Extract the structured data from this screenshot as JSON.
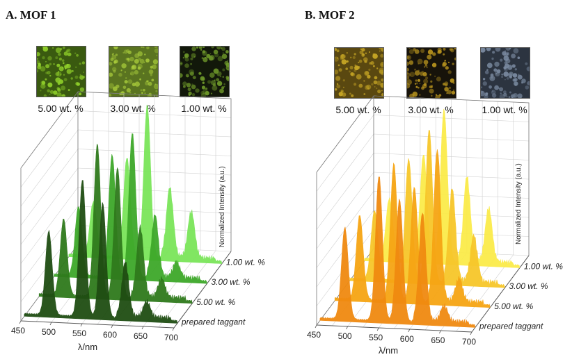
{
  "panels": [
    {
      "title": "A. MOF 1",
      "images": [
        {
          "label": "5.00 wt. %",
          "color": "#8fcf2a",
          "dark": "#3a5a10"
        },
        {
          "label": "3.00 wt. %",
          "color": "#a6c93a",
          "dark": "#5a7420"
        },
        {
          "label": "1.00 wt. %",
          "color": "#6f9a2a",
          "dark": "#12180a"
        }
      ]
    },
    {
      "title": "B. MOF 2",
      "images": [
        {
          "label": "5.00 wt. %",
          "color": "#c9a825",
          "dark": "#5a4810"
        },
        {
          "label": "3.00 wt. %",
          "color": "#b8941e",
          "dark": "#17130a"
        },
        {
          "label": "1.00 wt. %",
          "color": "#7a8aa0",
          "dark": "#2c3440"
        }
      ]
    }
  ],
  "chart_data": [
    {
      "type": "area",
      "title": "A. MOF 1",
      "xlabel": "λ/nm",
      "zlabel": "Normalized Intensity (a.u.)",
      "xticks": [
        450,
        500,
        550,
        600,
        650,
        700
      ],
      "xlim": [
        450,
        700
      ],
      "peaks_nm": [
        490,
        545,
        578,
        615,
        650
      ],
      "series": [
        {
          "name": "prepared taggant",
          "color": "#1f4d12",
          "values": [
            0.55,
            0.9,
            0.75,
            0.35,
            0.1
          ]
        },
        {
          "name": "5.00 wt. %",
          "color": "#2f7a1c",
          "values": [
            0.5,
            1.0,
            0.85,
            0.45,
            0.12
          ]
        },
        {
          "name": "3.00 wt. %",
          "color": "#3ea82a",
          "values": [
            0.45,
            0.8,
            0.95,
            0.4,
            0.1
          ]
        },
        {
          "name": "1.00 wt. %",
          "color": "#7be55a",
          "values": [
            0.35,
            0.65,
            1.0,
            0.45,
            0.3
          ]
        }
      ]
    },
    {
      "type": "area",
      "title": "B. MOF 2",
      "xlabel": "λ/nm",
      "zlabel": "Normalized Intensity (a.u.)",
      "xticks": [
        450,
        500,
        550,
        600,
        650,
        700
      ],
      "xlim": [
        450,
        700
      ],
      "peaks_nm": [
        490,
        545,
        578,
        615,
        650
      ],
      "series": [
        {
          "name": "prepared taggant",
          "color": "#f08a10",
          "values": [
            0.6,
            0.95,
            0.8,
            0.7,
            0.1
          ]
        },
        {
          "name": "5.00 wt. %",
          "color": "#f6a514",
          "values": [
            0.55,
            0.9,
            0.75,
            1.0,
            0.15
          ]
        },
        {
          "name": "3.00 wt. %",
          "color": "#f7c72a",
          "values": [
            0.45,
            0.8,
            1.0,
            0.6,
            0.3
          ]
        },
        {
          "name": "1.00 wt. %",
          "color": "#fbeb4a",
          "values": [
            0.4,
            0.7,
            1.0,
            0.55,
            0.35
          ]
        }
      ]
    }
  ]
}
